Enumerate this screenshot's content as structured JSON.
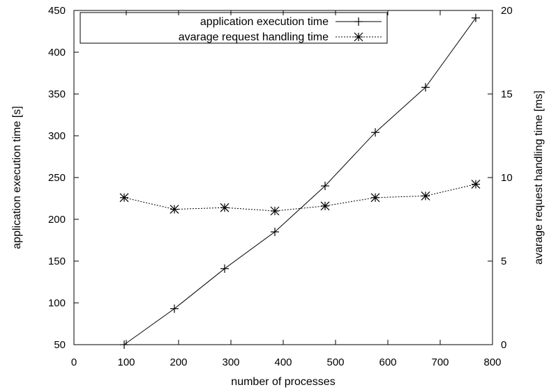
{
  "chart_data": {
    "type": "line",
    "x": [
      96,
      192,
      288,
      384,
      480,
      576,
      672,
      768
    ],
    "xlabel": "number of processes",
    "ylabel": "application execution time [s]",
    "y2label": "avarage request handling time [ms]",
    "xlim": [
      0,
      800
    ],
    "ylim": [
      50,
      450
    ],
    "y2lim": [
      0,
      20
    ],
    "x_ticks": [
      "0",
      "100",
      "200",
      "300",
      "400",
      "500",
      "600",
      "700",
      "800"
    ],
    "y_ticks": [
      "50",
      "100",
      "150",
      "200",
      "250",
      "300",
      "350",
      "400",
      "450"
    ],
    "y2_ticks": [
      "0",
      "5",
      "10",
      "15",
      "20"
    ],
    "grid": false,
    "legend_position": "top-left",
    "series": [
      {
        "name": "application execution time",
        "axis": "left",
        "line_style": "solid",
        "marker": "plus",
        "values": [
          50,
          93,
          141,
          185,
          240,
          304,
          358,
          441
        ]
      },
      {
        "name": "avarage request handling time",
        "axis": "right",
        "line_style": "dotted",
        "marker": "star",
        "values": [
          8.8,
          8.1,
          8.2,
          8.0,
          8.3,
          8.8,
          8.9,
          9.6
        ]
      }
    ]
  }
}
